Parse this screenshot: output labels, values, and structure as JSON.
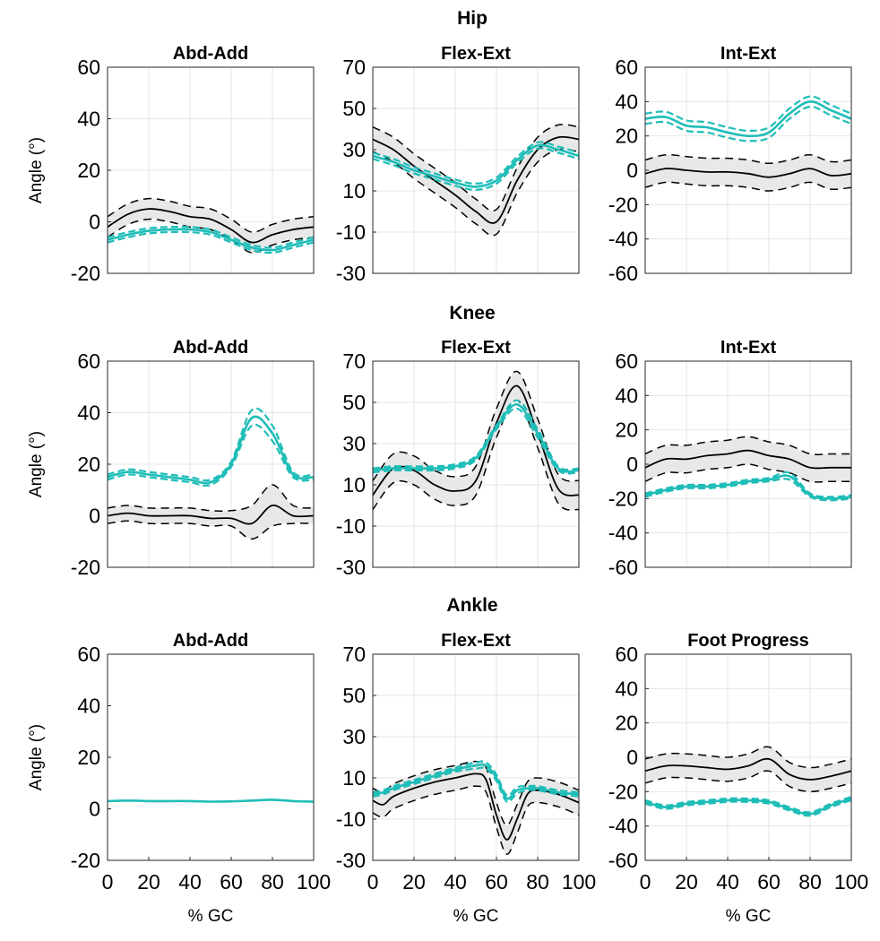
{
  "figure": {
    "rows": [
      {
        "title": "Hip",
        "panels": [
          {
            "title": "Abd-Add",
            "ylabel": "Angle (°)"
          },
          {
            "title": "Flex-Ext",
            "ylabel": ""
          },
          {
            "title": "Int-Ext",
            "ylabel": ""
          }
        ]
      },
      {
        "title": "Knee",
        "panels": [
          {
            "title": "Abd-Add",
            "ylabel": "Angle (°)"
          },
          {
            "title": "Flex-Ext",
            "ylabel": ""
          },
          {
            "title": "Int-Ext",
            "ylabel": ""
          }
        ]
      },
      {
        "title": "Ankle",
        "panels": [
          {
            "title": "Abd-Add",
            "ylabel": "Angle (°)"
          },
          {
            "title": "Flex-Ext",
            "ylabel": ""
          },
          {
            "title": "Foot Progress",
            "ylabel": ""
          }
        ]
      }
    ],
    "xlabel": "% GC",
    "colors": {
      "reference": "#000000",
      "band": "#e8e8e8",
      "subject": "#1fbdb8"
    }
  },
  "chart_data": [
    {
      "type": "line",
      "row": "Hip",
      "title": "Abd-Add",
      "xlabel": "",
      "ylabel": "Angle (°)",
      "xlim": [
        0,
        100
      ],
      "ylim": [
        -20,
        60
      ],
      "yticks": [
        -20,
        0,
        20,
        40,
        60
      ],
      "xticks": [],
      "grid": true,
      "x": [
        0,
        10,
        20,
        30,
        40,
        50,
        60,
        70,
        80,
        90,
        100
      ],
      "series": [
        {
          "name": "reference mean",
          "values": [
            -2,
            3,
            5,
            4,
            2,
            1,
            -3,
            -8,
            -5,
            -3,
            -2
          ]
        },
        {
          "name": "reference +1SD",
          "values": [
            2,
            7,
            9,
            8,
            6,
            5,
            1,
            -4,
            -1,
            1,
            2
          ]
        },
        {
          "name": "reference -1SD",
          "values": [
            -6,
            -1,
            1,
            0,
            -2,
            -3,
            -7,
            -12,
            -9,
            -7,
            -6
          ]
        },
        {
          "name": "subject mean",
          "values": [
            -7,
            -5,
            -3.5,
            -3,
            -3,
            -4,
            -7,
            -10,
            -11,
            -9,
            -7
          ]
        },
        {
          "name": "subject +1SD",
          "values": [
            -6,
            -4,
            -2.5,
            -2,
            -2,
            -3,
            -6,
            -9,
            -10,
            -8,
            -6
          ]
        },
        {
          "name": "subject -1SD",
          "values": [
            -8,
            -6,
            -4.5,
            -4,
            -4,
            -5,
            -8,
            -11,
            -12,
            -10,
            -8
          ]
        }
      ]
    },
    {
      "type": "line",
      "row": "Hip",
      "title": "Flex-Ext",
      "xlabel": "",
      "ylabel": "",
      "xlim": [
        0,
        100
      ],
      "ylim": [
        -30,
        70
      ],
      "yticks": [
        -30,
        -10,
        10,
        30,
        50,
        70
      ],
      "xticks": [],
      "grid": true,
      "x": [
        0,
        10,
        20,
        30,
        40,
        50,
        60,
        70,
        80,
        90,
        100
      ],
      "series": [
        {
          "name": "reference mean",
          "values": [
            35,
            30,
            22,
            15,
            8,
            0,
            -5,
            15,
            30,
            36,
            35
          ]
        },
        {
          "name": "reference +1SD",
          "values": [
            41,
            36,
            28,
            21,
            14,
            6,
            1,
            21,
            36,
            42,
            41
          ]
        },
        {
          "name": "reference -1SD",
          "values": [
            29,
            24,
            16,
            9,
            2,
            -6,
            -11,
            9,
            24,
            30,
            29
          ]
        },
        {
          "name": "subject mean",
          "values": [
            27,
            24,
            20,
            17,
            14,
            12,
            15,
            25,
            32,
            30,
            27
          ]
        },
        {
          "name": "subject +1SD",
          "values": [
            28.5,
            25.5,
            21.5,
            18.5,
            15.5,
            13.5,
            16.5,
            26.5,
            33.5,
            31.5,
            28.5
          ]
        },
        {
          "name": "subject -1SD",
          "values": [
            25.5,
            22.5,
            18.5,
            15.5,
            12.5,
            10.5,
            13.5,
            23.5,
            30.5,
            28.5,
            25.5
          ]
        }
      ]
    },
    {
      "type": "line",
      "row": "Hip",
      "title": "Int-Ext",
      "xlabel": "",
      "ylabel": "",
      "xlim": [
        0,
        100
      ],
      "ylim": [
        -60,
        60
      ],
      "yticks": [
        -60,
        -40,
        -20,
        0,
        20,
        40,
        60
      ],
      "xticks": [],
      "grid": true,
      "x": [
        0,
        10,
        20,
        30,
        40,
        50,
        60,
        70,
        80,
        90,
        100
      ],
      "series": [
        {
          "name": "reference mean",
          "values": [
            -2,
            1,
            0,
            -1,
            -1,
            -2,
            -4,
            -2,
            1,
            -3,
            -2
          ]
        },
        {
          "name": "reference +1SD",
          "values": [
            6,
            9,
            8,
            7,
            7,
            6,
            4,
            6,
            9,
            5,
            6
          ]
        },
        {
          "name": "reference -1SD",
          "values": [
            -10,
            -7,
            -8,
            -9,
            -9,
            -10,
            -12,
            -10,
            -7,
            -11,
            -10
          ]
        },
        {
          "name": "subject mean",
          "values": [
            30,
            31,
            26,
            25,
            22,
            20,
            22,
            33,
            40,
            35,
            30
          ]
        },
        {
          "name": "subject +1SD",
          "values": [
            33,
            34,
            29,
            28,
            25,
            23,
            25,
            36,
            43,
            38,
            33
          ]
        },
        {
          "name": "subject -1SD",
          "values": [
            27,
            28,
            23,
            22,
            19,
            17,
            19,
            30,
            37,
            32,
            27
          ]
        }
      ]
    },
    {
      "type": "line",
      "row": "Knee",
      "title": "Abd-Add",
      "xlabel": "",
      "ylabel": "Angle (°)",
      "xlim": [
        0,
        100
      ],
      "ylim": [
        -20,
        60
      ],
      "yticks": [
        -20,
        0,
        20,
        40,
        60
      ],
      "xticks": [],
      "grid": true,
      "x": [
        0,
        10,
        20,
        30,
        40,
        50,
        60,
        70,
        80,
        90,
        100
      ],
      "series": [
        {
          "name": "reference mean",
          "values": [
            0,
            1,
            0,
            0,
            0,
            -1,
            -1,
            -3,
            4,
            0,
            0
          ]
        },
        {
          "name": "reference +1SD",
          "values": [
            3,
            4,
            3,
            3,
            3,
            2,
            2,
            4,
            12,
            4,
            3
          ]
        },
        {
          "name": "reference -1SD",
          "values": [
            -3,
            -2,
            -3,
            -3,
            -3,
            -4,
            -4,
            -9,
            -4,
            -3,
            -3
          ]
        },
        {
          "name": "subject mean",
          "values": [
            15,
            17,
            16,
            15,
            14,
            13,
            20,
            38,
            32,
            16,
            15
          ]
        },
        {
          "name": "subject +1SD",
          "values": [
            16,
            18,
            17,
            16,
            15,
            14,
            21,
            41,
            35,
            17,
            16
          ]
        },
        {
          "name": "subject -1SD",
          "values": [
            14,
            16,
            15,
            14,
            13,
            12,
            19,
            35,
            29,
            15,
            14
          ]
        }
      ]
    },
    {
      "type": "line",
      "row": "Knee",
      "title": "Flex-Ext",
      "xlabel": "",
      "ylabel": "",
      "xlim": [
        0,
        100
      ],
      "ylim": [
        -30,
        70
      ],
      "yticks": [
        -30,
        -10,
        10,
        30,
        50,
        70
      ],
      "xticks": [],
      "grid": true,
      "x": [
        0,
        10,
        20,
        30,
        40,
        50,
        60,
        70,
        80,
        90,
        100
      ],
      "series": [
        {
          "name": "reference mean",
          "values": [
            5,
            18,
            17,
            10,
            7,
            12,
            40,
            58,
            35,
            8,
            5
          ]
        },
        {
          "name": "reference +1SD",
          "values": [
            12,
            25,
            24,
            17,
            14,
            19,
            47,
            65,
            42,
            15,
            12
          ]
        },
        {
          "name": "reference -1SD",
          "values": [
            -2,
            11,
            10,
            3,
            0,
            5,
            33,
            51,
            28,
            1,
            -2
          ]
        },
        {
          "name": "subject mean",
          "values": [
            17,
            18,
            18,
            18,
            19,
            23,
            38,
            49,
            35,
            18,
            17
          ]
        },
        {
          "name": "subject +1SD",
          "values": [
            18,
            19,
            19,
            19,
            20,
            24,
            39,
            51,
            37,
            19,
            18
          ]
        },
        {
          "name": "subject -1SD",
          "values": [
            16,
            17,
            17,
            17,
            18,
            22,
            37,
            47,
            33,
            17,
            16
          ]
        }
      ]
    },
    {
      "type": "line",
      "row": "Knee",
      "title": "Int-Ext",
      "xlabel": "",
      "ylabel": "",
      "xlim": [
        0,
        100
      ],
      "ylim": [
        -60,
        60
      ],
      "yticks": [
        -60,
        -40,
        -20,
        0,
        20,
        40,
        60
      ],
      "xticks": [],
      "grid": true,
      "x": [
        0,
        10,
        20,
        30,
        40,
        50,
        60,
        70,
        80,
        90,
        100
      ],
      "series": [
        {
          "name": "reference mean",
          "values": [
            -2,
            3,
            3,
            5,
            6,
            8,
            5,
            3,
            -2,
            -2,
            -2
          ]
        },
        {
          "name": "reference +1SD",
          "values": [
            6,
            11,
            11,
            13,
            14,
            16,
            13,
            11,
            6,
            6,
            6
          ]
        },
        {
          "name": "reference -1SD",
          "values": [
            -10,
            -5,
            -5,
            -3,
            -2,
            0,
            -3,
            -5,
            -10,
            -10,
            -10
          ]
        },
        {
          "name": "subject mean",
          "values": [
            -18,
            -15,
            -13,
            -13,
            -12,
            -10,
            -9,
            -7,
            -18,
            -20,
            -19
          ]
        },
        {
          "name": "subject +1SD",
          "values": [
            -17,
            -14,
            -12,
            -12,
            -11,
            -9,
            -8,
            -5,
            -17,
            -19,
            -18
          ]
        },
        {
          "name": "subject -1SD",
          "values": [
            -19,
            -16,
            -14,
            -14,
            -13,
            -11,
            -10,
            -9,
            -19,
            -21,
            -20
          ]
        }
      ]
    },
    {
      "type": "line",
      "row": "Ankle",
      "title": "Abd-Add",
      "xlabel": "% GC",
      "ylabel": "Angle (°)",
      "xlim": [
        0,
        100
      ],
      "ylim": [
        -20,
        60
      ],
      "yticks": [
        -20,
        0,
        20,
        40,
        60
      ],
      "xticks": [
        0,
        20,
        40,
        60,
        80,
        100
      ],
      "grid": false,
      "x": [
        0,
        10,
        20,
        30,
        40,
        50,
        60,
        70,
        80,
        90,
        100
      ],
      "series": [
        {
          "name": "subject mean",
          "values": [
            3,
            3.2,
            3,
            3,
            3,
            2.8,
            2.9,
            3.2,
            3.5,
            3,
            2.8
          ]
        }
      ]
    },
    {
      "type": "line",
      "row": "Ankle",
      "title": "Flex-Ext",
      "xlabel": "% GC",
      "ylabel": "",
      "xlim": [
        0,
        100
      ],
      "ylim": [
        -30,
        70
      ],
      "yticks": [
        -30,
        -10,
        10,
        30,
        50,
        70
      ],
      "xticks": [
        0,
        20,
        40,
        60,
        80,
        100
      ],
      "grid": true,
      "x": [
        0,
        5,
        10,
        20,
        30,
        40,
        50,
        55,
        60,
        65,
        70,
        75,
        80,
        90,
        100
      ],
      "series": [
        {
          "name": "reference mean",
          "values": [
            -1,
            -3,
            1,
            5,
            8,
            10,
            12,
            9,
            -8,
            -20,
            -10,
            2,
            4,
            2,
            -2
          ]
        },
        {
          "name": "reference +1SD",
          "values": [
            5,
            3,
            7,
            11,
            14,
            16,
            18,
            15,
            -2,
            -13,
            -3,
            8,
            10,
            8,
            4
          ]
        },
        {
          "name": "reference -1SD",
          "values": [
            -7,
            -9,
            -5,
            -1,
            2,
            4,
            6,
            3,
            -14,
            -27,
            -17,
            -4,
            -2,
            -4,
            -8
          ]
        },
        {
          "name": "subject mean",
          "values": [
            2,
            3,
            5,
            8,
            11,
            14,
            16,
            16,
            10,
            0,
            4,
            5,
            5,
            3,
            2
          ]
        },
        {
          "name": "subject +1SD",
          "values": [
            3,
            4,
            6,
            9,
            12,
            15,
            17.5,
            17.5,
            11.5,
            1.5,
            5.5,
            6,
            6,
            4,
            3
          ]
        },
        {
          "name": "subject -1SD",
          "values": [
            1,
            2,
            4,
            7,
            10,
            13,
            14.5,
            14.5,
            8.5,
            -1.5,
            2.5,
            4,
            4,
            2,
            1
          ]
        }
      ]
    },
    {
      "type": "line",
      "row": "Ankle",
      "title": "Foot Progress",
      "xlabel": "% GC",
      "ylabel": "",
      "xlim": [
        0,
        100
      ],
      "ylim": [
        -60,
        60
      ],
      "yticks": [
        -60,
        -40,
        -20,
        0,
        20,
        40,
        60
      ],
      "xticks": [
        0,
        20,
        40,
        60,
        80,
        100
      ],
      "grid": true,
      "x": [
        0,
        10,
        20,
        30,
        40,
        50,
        60,
        70,
        80,
        90,
        100
      ],
      "series": [
        {
          "name": "reference mean",
          "values": [
            -8,
            -5,
            -5,
            -6,
            -7,
            -5,
            -1,
            -10,
            -13,
            -11,
            -8
          ]
        },
        {
          "name": "reference +1SD",
          "values": [
            -1,
            2,
            2,
            1,
            0,
            2,
            6,
            -3,
            -6,
            -4,
            -1
          ]
        },
        {
          "name": "reference -1SD",
          "values": [
            -15,
            -12,
            -12,
            -13,
            -14,
            -12,
            -8,
            -17,
            -20,
            -18,
            -15
          ]
        },
        {
          "name": "subject mean",
          "values": [
            -26,
            -29,
            -27,
            -26,
            -25,
            -25,
            -26,
            -30,
            -33,
            -28,
            -24
          ]
        },
        {
          "name": "subject +1SD",
          "values": [
            -25,
            -28,
            -26,
            -25,
            -24,
            -24,
            -25,
            -29,
            -32,
            -27,
            -23
          ]
        },
        {
          "name": "subject -1SD",
          "values": [
            -27,
            -30,
            -28,
            -27,
            -26,
            -26,
            -27,
            -31,
            -34,
            -29,
            -25
          ]
        }
      ]
    }
  ]
}
